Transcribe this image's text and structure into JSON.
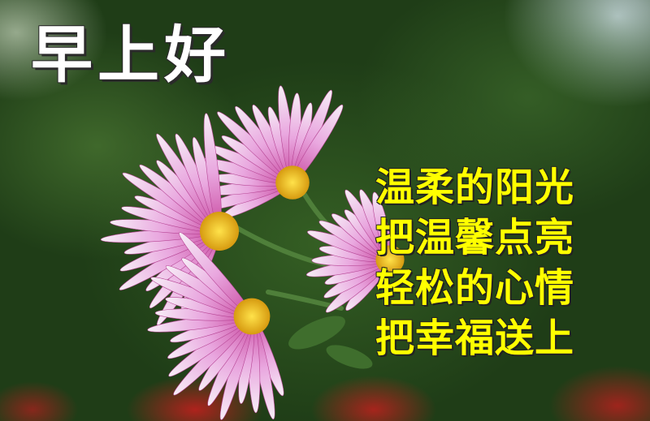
{
  "greeting": "早上好",
  "poem": {
    "lines": [
      "温柔的阳光",
      "把温馨点亮",
      "轻松的心情",
      "把幸福送上"
    ]
  },
  "colors": {
    "greeting_text": "#ffffff",
    "poem_text": "#ffff00",
    "petal": "#e7a8de",
    "flower_center": "#f2c21a",
    "foliage": "#2f5a22"
  }
}
